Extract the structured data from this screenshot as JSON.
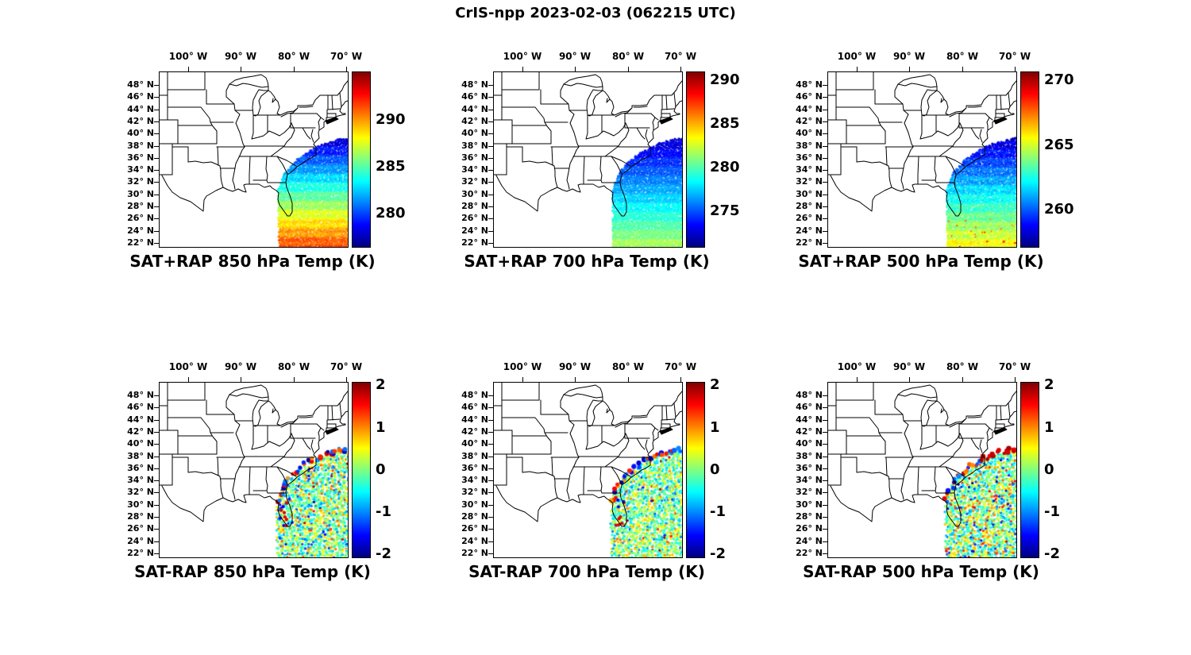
{
  "figure": {
    "title": "CrIS-npp 2023-02-03 (062215 UTC)",
    "instrument": "CrIS-npp",
    "date": "2023-02-03",
    "time_utc": "062215 UTC"
  },
  "axes": {
    "lon_ticks": [
      "100° W",
      "90° W",
      "80° W",
      "70° W"
    ],
    "lat_ticks": [
      "48° N",
      "46° N",
      "44° N",
      "42° N",
      "40° N",
      "38° N",
      "36° N",
      "34° N",
      "32° N",
      "30° N",
      "28° N",
      "26° N",
      "24° N",
      "22° N"
    ]
  },
  "panels": [
    {
      "title": "SAT+RAP 850 hPa Temp (K)",
      "colorbar": {
        "range": [
          276.5,
          295.2
        ],
        "ticks": [
          {
            "label": "290",
            "value": 290
          },
          {
            "label": "285",
            "value": 285
          },
          {
            "label": "280",
            "value": 280
          }
        ]
      },
      "swath": {
        "mode": "field",
        "north_value": 277.5,
        "south_value": 291.8,
        "banding": 0.5,
        "noise": 0.5,
        "warm_spots": false
      }
    },
    {
      "title": "SAT+RAP 700 hPa Temp (K)",
      "colorbar": {
        "range": [
          271.0,
          291.0
        ],
        "ticks": [
          {
            "label": "290",
            "value": 290
          },
          {
            "label": "285",
            "value": 285
          },
          {
            "label": "280",
            "value": 280
          },
          {
            "label": "275",
            "value": 275
          }
        ]
      },
      "swath": {
        "mode": "field",
        "north_value": 272.2,
        "south_value": 282.0,
        "banding": 0.35,
        "noise": 0.4,
        "warm_spots": false
      }
    },
    {
      "title": "SAT+RAP 500 hPa Temp (K)",
      "colorbar": {
        "range": [
          257.2,
          270.7
        ],
        "ticks": [
          {
            "label": "270",
            "value": 270
          },
          {
            "label": "265",
            "value": 265
          },
          {
            "label": "260",
            "value": 260
          }
        ]
      },
      "swath": {
        "mode": "field",
        "north_value": 258.0,
        "south_value": 265.8,
        "banding": 0.3,
        "noise": 0.5,
        "warm_spots": true
      }
    },
    {
      "title": "SAT-RAP 850 hPa Temp (K)",
      "colorbar": {
        "range": [
          -2.05,
          2.08
        ],
        "ticks": [
          {
            "label": "2",
            "value": 2
          },
          {
            "label": "1",
            "value": 1
          },
          {
            "label": "0",
            "value": 0
          },
          {
            "label": "-1",
            "value": -1
          },
          {
            "label": "-2",
            "value": -2
          }
        ]
      },
      "swath": {
        "mode": "diff",
        "spread": 0.6,
        "edge_warm_bias": false,
        "florida_dots": true
      }
    },
    {
      "title": "SAT-RAP 700 hPa Temp (K)",
      "colorbar": {
        "range": [
          -2.05,
          2.08
        ],
        "ticks": [
          {
            "label": "2",
            "value": 2
          },
          {
            "label": "1",
            "value": 1
          },
          {
            "label": "0",
            "value": 0
          },
          {
            "label": "-1",
            "value": -1
          },
          {
            "label": "-2",
            "value": -2
          }
        ]
      },
      "swath": {
        "mode": "diff",
        "spread": 0.5,
        "edge_warm_bias": false,
        "florida_dots": true
      }
    },
    {
      "title": "SAT-RAP 500 hPa Temp (K)",
      "colorbar": {
        "range": [
          -2.05,
          2.08
        ],
        "ticks": [
          {
            "label": "2",
            "value": 2
          },
          {
            "label": "1",
            "value": 1
          },
          {
            "label": "0",
            "value": 0
          },
          {
            "label": "-1",
            "value": -1
          },
          {
            "label": "-2",
            "value": -2
          }
        ]
      },
      "swath": {
        "mode": "diff",
        "spread": 0.65,
        "edge_warm_bias": true,
        "florida_dots": false
      }
    }
  ],
  "chart_data": {
    "type": "heatmap",
    "figure_title": "CrIS-npp 2023-02-03 (062215 UTC)",
    "map_extent": {
      "lon": [
        -105.5,
        -69.5
      ],
      "lat": [
        20.0,
        48.8
      ]
    },
    "lon_tick_values": [
      -100,
      -90,
      -80,
      -70
    ],
    "lat_tick_values": [
      48,
      46,
      44,
      42,
      40,
      38,
      36,
      34,
      32,
      30,
      28,
      26,
      24,
      22
    ],
    "swath_extent": {
      "lon": [
        -82.5,
        -68
      ],
      "lat": [
        21,
        38.5
      ],
      "description": "Satellite sounding swath over the southeastern US coast and western Atlantic, diagonal NW edge from Georgia coast toward New England"
    },
    "colormap": "jet",
    "subplots": [
      {
        "row": 1,
        "col": 1,
        "title": "SAT+RAP 850 hPa Temp (K)",
        "colorbar_ticks": [
          290,
          285,
          280
        ],
        "colorbar_range": [
          276.5,
          295.2
        ],
        "field": {
          "north_edge_K": 277.5,
          "south_edge_K": 291.8,
          "pattern": "temperature increasing southward, dark blue off New England to orange-red over Gulf Stream and south Florida"
        }
      },
      {
        "row": 1,
        "col": 2,
        "title": "SAT+RAP 700 hPa Temp (K)",
        "colorbar_ticks": [
          290,
          285,
          280,
          275
        ],
        "colorbar_range": [
          271.0,
          291.0
        ],
        "field": {
          "north_edge_K": 272.2,
          "south_edge_K": 282.0,
          "pattern": "blue in north transitioning to broad green-yellow over southern portion"
        }
      },
      {
        "row": 1,
        "col": 3,
        "title": "SAT+RAP 500 hPa Temp (K)",
        "colorbar_ticks": [
          270,
          265,
          260
        ],
        "colorbar_range": [
          257.2,
          270.7
        ],
        "field": {
          "north_edge_K": 258.0,
          "south_edge_K": 265.8,
          "pattern": "blue/cyan north, green-yellow south with scattered warm orange spots near 22-24N"
        }
      },
      {
        "row": 2,
        "col": 1,
        "title": "SAT-RAP 850 hPa Temp (K)",
        "colorbar_ticks": [
          2,
          1,
          0,
          -1,
          -2
        ],
        "colorbar_range": [
          -2,
          2
        ],
        "field": {
          "mean_K": 0,
          "spread_K": 0.6,
          "pattern": "noisy differences near zero with mixed red/blue dots along swath edge and Florida coast"
        }
      },
      {
        "row": 2,
        "col": 2,
        "title": "SAT-RAP 700 hPa Temp (K)",
        "colorbar_ticks": [
          2,
          1,
          0,
          -1,
          -2
        ],
        "colorbar_range": [
          -2,
          2
        ],
        "field": {
          "mean_K": 0,
          "spread_K": 0.5,
          "pattern": "noisy differences near zero, mostly green/cyan"
        }
      },
      {
        "row": 2,
        "col": 3,
        "title": "SAT-RAP 500 hPa Temp (K)",
        "colorbar_ticks": [
          2,
          1,
          0,
          -1,
          -2
        ],
        "colorbar_range": [
          -2,
          2
        ],
        "field": {
          "mean_K": 0,
          "spread_K": 0.65,
          "pattern": "noisy differences with strong warm (dark red) cluster along northeastern swath edge"
        }
      }
    ]
  }
}
